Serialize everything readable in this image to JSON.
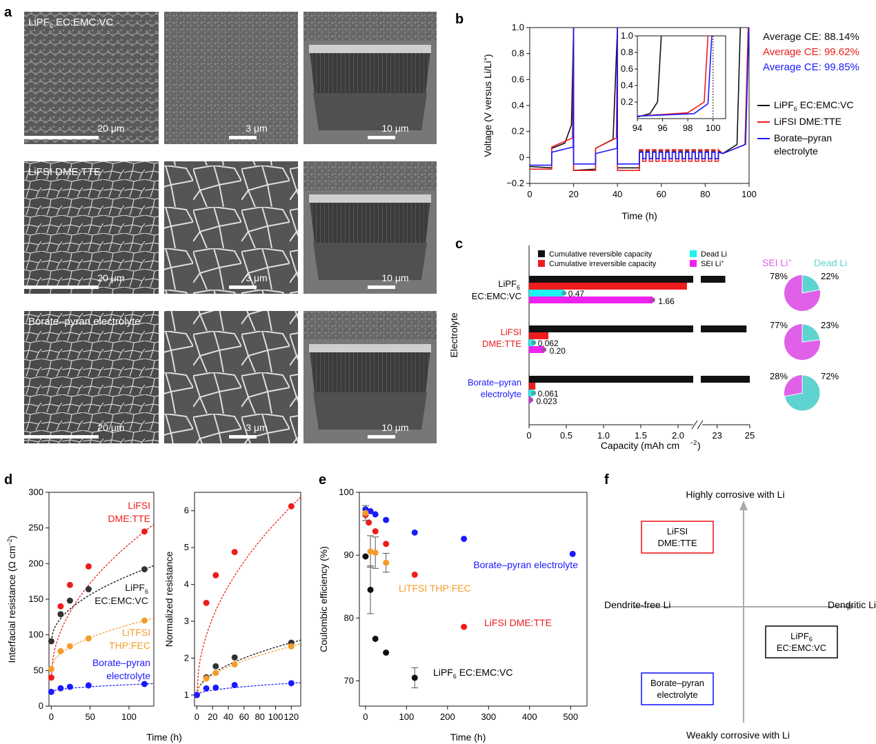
{
  "panel_letters": {
    "a": "a",
    "b": "b",
    "c": "c",
    "d": "d",
    "e": "e",
    "f": "f"
  },
  "panel_a": {
    "rows": [
      {
        "label_main": "LiPF",
        "label_sub": "6",
        "label_rest": " EC:EMC:VC",
        "scales": [
          "20 μm",
          "3 μm",
          "10 μm"
        ]
      },
      {
        "label_main": "LiFSI DME:TTE",
        "label_sub": "",
        "label_rest": "",
        "scales": [
          "20 μm",
          "3 μm",
          "10 μm"
        ]
      },
      {
        "label_main": "Borate–pyran electrolyte",
        "label_sub": "",
        "label_rest": "",
        "scales": [
          "20 μm",
          "3 μm",
          "10 μm"
        ]
      }
    ]
  },
  "colors": {
    "black": "#111111",
    "red": "#ee1c1c",
    "blue": "#1a1aff",
    "orange": "#f39c2a",
    "cyan": "#1ef2f2",
    "magenta": "#ee22ee",
    "pie_magenta": "#e060e8",
    "pie_teal": "#5fd3d0"
  },
  "chart_data": [
    {
      "id": "b",
      "type": "line",
      "xlabel": "Time (h)",
      "ylabel": "Voltage (V versus Li/Li+)",
      "xlim": [
        0,
        100
      ],
      "ylim": [
        -0.2,
        1.0
      ],
      "xticks": [
        "0",
        "20",
        "40",
        "60",
        "80",
        "100"
      ],
      "yticks": [
        "−0.2",
        "0",
        "0.2",
        "0.4",
        "0.6",
        "0.8",
        "1.0"
      ],
      "series": [
        {
          "name": "LiPF6 EC:EMC:VC",
          "color": "black"
        },
        {
          "name": "LiFSI DME:TTE",
          "color": "red"
        },
        {
          "name": "Borate–pyran electrolyte",
          "color": "blue"
        }
      ],
      "legend": [
        {
          "main": "LiPF",
          "sub": "6",
          "rest": " EC:EMC:VC"
        },
        {
          "main": "LiFSI DME:TTE",
          "sub": "",
          "rest": ""
        },
        {
          "main": "Borate–pyran",
          "sub": "",
          "rest": ""
        },
        {
          "main": "electrolyte",
          "sub": "",
          "rest": ""
        }
      ],
      "annotations": [
        "Average CE: 88.14%",
        "Average CE: 99.62%",
        "Average CE: 99.85%"
      ],
      "inset": {
        "xlim": [
          94,
          101
        ],
        "ylim": [
          0,
          1.0
        ],
        "xticks": [
          "94",
          "96",
          "98",
          "100"
        ],
        "yticks": [
          "0.2",
          "0.4",
          "0.6",
          "0.8",
          "1.0"
        ]
      }
    },
    {
      "id": "c",
      "type": "bar",
      "orientation": "horizontal",
      "xlabel": "Capacity (mAh cm−2)",
      "ylabel": "Electrolyte",
      "xticks": [
        "0",
        "0.5",
        "1.0",
        "1.5",
        "2.0",
        "23",
        "25"
      ],
      "legend": [
        "Cumulative reversible capacity",
        "Cumulative irreversible capacity",
        "Dead Li",
        "SEI Li+"
      ],
      "groups": [
        {
          "label": [
            "LiPF6",
            "EC:EMC:VC"
          ],
          "reversible": 23.5,
          "irreversible": 2.12,
          "dead_li": 0.47,
          "sei_li": 1.66,
          "dead_label": "0.47",
          "sei_label": "1.66"
        },
        {
          "label": [
            "LiFSI",
            "DME:TTE"
          ],
          "reversible": 24.8,
          "irreversible": 0.26,
          "dead_li": 0.062,
          "sei_li": 0.2,
          "dead_label": "0.062",
          "sei_label": "0.20"
        },
        {
          "label": [
            "Borate–pyran",
            "electrolyte"
          ],
          "reversible": 25.0,
          "irreversible": 0.085,
          "dead_li": 0.061,
          "sei_li": 0.023,
          "dead_label": "0.061",
          "sei_label": "0.023"
        }
      ],
      "pies": {
        "legend": [
          "SEI Li+",
          "Dead Li"
        ],
        "slices": [
          {
            "sei": 78,
            "dead": 22,
            "sei_label": "78%",
            "dead_label": "22%"
          },
          {
            "sei": 77,
            "dead": 23,
            "sei_label": "77%",
            "dead_label": "23%"
          },
          {
            "sei": 28,
            "dead": 72,
            "sei_label": "28%",
            "dead_label": "72%"
          }
        ]
      }
    },
    {
      "id": "d-left",
      "type": "scatter",
      "xlabel": "Time (h)",
      "ylabel": "Interfacial resistance (Ω cm−2)",
      "xlim": [
        -3,
        132
      ],
      "ylim": [
        0,
        300
      ],
      "xticks": [
        "0",
        "50",
        "100"
      ],
      "yticks": [
        "0",
        "50",
        "100",
        "150",
        "200",
        "250",
        "300"
      ],
      "series": [
        {
          "name": "LiFSI DME:TTE",
          "color": "red",
          "x": [
            0,
            12,
            24,
            48,
            120
          ],
          "y": [
            40,
            140,
            170,
            196,
            245
          ]
        },
        {
          "name": "LiPF6 EC:EMC:VC",
          "color": "black",
          "x": [
            0,
            12,
            24,
            48,
            120
          ],
          "y": [
            91,
            129,
            148,
            164,
            192
          ]
        },
        {
          "name": "LiTFSI THP:FEC",
          "color": "orange",
          "x": [
            0,
            12,
            24,
            48,
            120
          ],
          "y": [
            52,
            77,
            84,
            95,
            120
          ]
        },
        {
          "name": "Borate–pyran electrolyte",
          "color": "blue",
          "x": [
            0,
            12,
            24,
            48,
            120
          ],
          "y": [
            20,
            25,
            27,
            29,
            31
          ]
        }
      ],
      "labels": [
        {
          "lines": [
            "LiFSI",
            "DME:TTE"
          ],
          "color": "red"
        },
        {
          "lines": [
            "LiPF",
            "EC:EMC:VC"
          ],
          "sub": "6",
          "color": "black"
        },
        {
          "lines": [
            "LiTFSI",
            "THP:FEC"
          ],
          "color": "orange"
        },
        {
          "lines": [
            "Borate–pyran",
            "electrolyte"
          ],
          "color": "blue"
        }
      ]
    },
    {
      "id": "d-right",
      "type": "scatter",
      "xlabel": "Time (h)",
      "ylabel": "Normalized resistance",
      "xlim": [
        -3,
        132
      ],
      "ylim": [
        0.7,
        6.5
      ],
      "xticks": [
        "0",
        "20",
        "40",
        "60",
        "80",
        "100",
        "120"
      ],
      "yticks": [
        "1",
        "2",
        "3",
        "4",
        "5",
        "6"
      ],
      "series": [
        {
          "name": "LiFSI DME:TTE",
          "color": "red",
          "x": [
            0,
            12,
            24,
            48,
            120
          ],
          "y": [
            1.0,
            3.5,
            4.25,
            4.88,
            6.12
          ]
        },
        {
          "name": "LiPF6 EC:EMC:VC",
          "color": "black",
          "x": [
            0,
            12,
            24,
            48,
            120
          ],
          "y": [
            1.0,
            1.48,
            1.78,
            2.02,
            2.42
          ]
        },
        {
          "name": "LiTFSI THP:FEC",
          "color": "orange",
          "x": [
            0,
            12,
            24,
            48,
            120
          ],
          "y": [
            1.0,
            1.45,
            1.6,
            1.83,
            2.32
          ]
        },
        {
          "name": "Borate–pyran electrolyte",
          "color": "blue",
          "x": [
            0,
            12,
            24,
            48,
            120
          ],
          "y": [
            1.0,
            1.18,
            1.2,
            1.27,
            1.32
          ]
        }
      ]
    },
    {
      "id": "e",
      "type": "scatter",
      "xlabel": "Time (h)",
      "ylabel": "Coulombic efficiency (%)",
      "xlim": [
        -15,
        540
      ],
      "ylim": [
        66,
        100
      ],
      "xticks": [
        "0",
        "100",
        "200",
        "300",
        "400",
        "500"
      ],
      "yticks": [
        "70",
        "80",
        "90",
        "100"
      ],
      "series": [
        {
          "name": "Borate–pyran electrolyte",
          "color": "blue",
          "x": [
            0,
            12,
            24,
            50,
            120,
            240,
            505
          ],
          "y": [
            97.3,
            97.0,
            96.5,
            95.6,
            93.6,
            92.6,
            90.2
          ]
        },
        {
          "name": "LiFSI DME:TTE",
          "color": "red",
          "x": [
            0,
            8,
            24,
            50,
            120,
            240
          ],
          "y": [
            96.4,
            95.2,
            93.8,
            91.8,
            86.9,
            78.6
          ]
        },
        {
          "name": "LiTFSI THP:FEC",
          "color": "orange",
          "x": [
            0,
            12,
            24,
            50
          ],
          "y": [
            96.7,
            90.6,
            90.4,
            88.8
          ]
        },
        {
          "name": "LiPF6 EC:EMC:VC",
          "color": "black",
          "x": [
            0,
            12,
            24,
            50,
            120
          ],
          "y": [
            89.8,
            84.5,
            76.7,
            74.5,
            70.5
          ]
        }
      ],
      "labels": [
        "Borate–pyran electrolyte",
        "LiTFSI THP:FEC",
        "LiFSI DME:TTE",
        "LiPF6 EC:EMC:VC"
      ]
    }
  ],
  "panel_f": {
    "top": "Highly corrosive with Li",
    "bottom": "Weakly corrosive with Li",
    "left": "Dendrite-free Li",
    "right": "Dendritic Li",
    "box_red": [
      "LiFSI",
      "DME:TTE"
    ],
    "box_black": [
      "LiPF",
      "EC:EMC:VC"
    ],
    "box_black_sub": "6",
    "box_blue": [
      "Borate–pyran",
      "electrolyte"
    ]
  }
}
